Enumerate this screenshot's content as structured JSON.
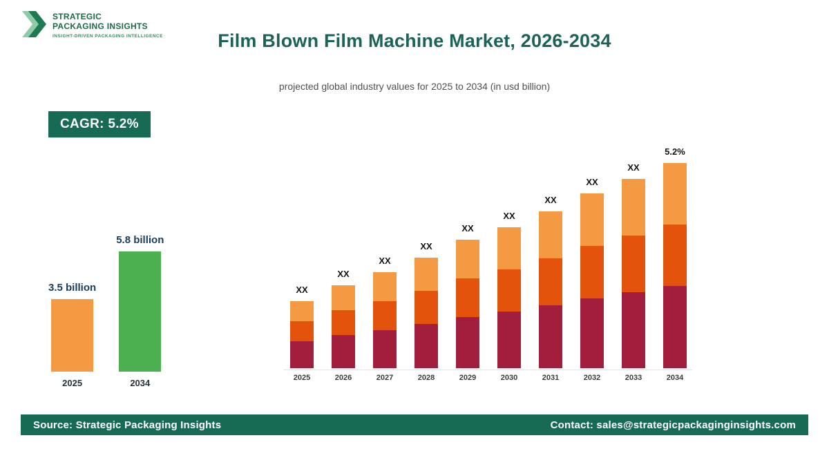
{
  "header": {
    "logo": {
      "line1": "STRATEGIC",
      "line2": "PACKAGING INSIGHTS",
      "tagline": "INSIGHT-DRIVEN PACKAGING INTELLIGENCE"
    },
    "title": "Film Blown Film Machine Market, 2026-2034",
    "subtitle": "projected global industry values for 2025 to 2034 (in usd billion)"
  },
  "badge": {
    "label": "CAGR: 5.2%"
  },
  "footer": {
    "source": "Source: Strategic Packaging Insights",
    "contact": "Contact: sales@strategicpackaginginsights.com"
  },
  "colors": {
    "brand_green_dark": "#176B54",
    "logo_green": "#1C6B46",
    "title_teal": "#1B6358",
    "bar_orange_light": "#F49A42",
    "bar_orange_red": "#E4530B",
    "bar_maroon": "#A31E3D",
    "bar_green": "#4CAF50"
  },
  "chart_data": [
    {
      "type": "bar",
      "name": "summary-growth",
      "categories": [
        "2025",
        "2034"
      ],
      "values": [
        3.5,
        5.8
      ],
      "data_labels": [
        "3.5 billion",
        "5.8 billion"
      ],
      "bar_colors": [
        "#F49A42",
        "#4CAF50"
      ],
      "ylabel": "usd billion",
      "ylim": [
        0,
        6
      ]
    },
    {
      "type": "bar",
      "stacked": true,
      "name": "projected-values-2025-2034",
      "categories": [
        "2025",
        "2026",
        "2027",
        "2028",
        "2029",
        "2030",
        "2031",
        "2032",
        "2033",
        "2034"
      ],
      "series": [
        {
          "name": "segment-bottom",
          "color": "#A31E3D",
          "values": [
            1.4,
            1.72,
            2.0,
            2.32,
            2.68,
            2.96,
            3.28,
            3.64,
            3.96,
            4.28
          ]
        },
        {
          "name": "segment-middle",
          "color": "#E4530B",
          "values": [
            1.05,
            1.29,
            1.5,
            1.74,
            2.01,
            2.22,
            2.46,
            2.73,
            2.97,
            3.21
          ]
        },
        {
          "name": "segment-top",
          "color": "#F49A42",
          "values": [
            1.05,
            1.29,
            1.5,
            1.74,
            2.01,
            2.22,
            2.46,
            2.73,
            2.97,
            3.21
          ]
        }
      ],
      "totals_relative": [
        3.5,
        4.3,
        5.0,
        5.8,
        6.7,
        7.4,
        8.2,
        9.1,
        9.9,
        10.7
      ],
      "data_labels": [
        "XX",
        "XX",
        "XX",
        "XX",
        "XX",
        "XX",
        "XX",
        "XX",
        "XX",
        "5.2%"
      ],
      "legend": "none",
      "grid": false
    }
  ]
}
